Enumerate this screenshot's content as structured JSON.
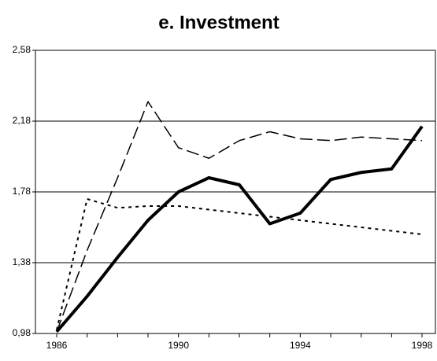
{
  "chart_data": {
    "type": "line",
    "title": "e. Investment",
    "categories": [
      "1986",
      null,
      null,
      null,
      "1990",
      null,
      null,
      null,
      "1994",
      null,
      null,
      null,
      "1998"
    ],
    "series": [
      {
        "color": "#000000",
        "dash": "solid",
        "width": 4,
        "values": [
          0.99,
          1.19,
          1.41,
          1.62,
          1.78,
          1.86,
          1.82,
          1.6,
          1.66,
          1.85,
          1.89,
          1.91,
          2.15
        ]
      },
      {
        "color": "#000000",
        "dash": "long",
        "width": 1.5,
        "values": [
          0.99,
          1.45,
          1.86,
          2.29,
          2.03,
          1.97,
          2.07,
          2.12,
          2.08,
          2.07,
          2.09,
          2.08,
          2.07
        ]
      },
      {
        "color": "#000000",
        "dash": "short",
        "width": 2,
        "values": [
          1.0,
          1.74,
          1.69,
          1.7,
          1.7,
          1.68,
          1.66,
          1.64,
          1.62,
          1.6,
          1.58,
          1.56,
          1.54
        ]
      }
    ],
    "ylim": [
      0.98,
      2.58
    ],
    "yticks": [
      {
        "value": 0.98,
        "label": "0,98"
      },
      {
        "value": 1.38,
        "label": "1,38"
      },
      {
        "value": 1.78,
        "label": "1,78"
      },
      {
        "value": 2.18,
        "label": "2,18"
      },
      {
        "value": 2.58,
        "label": "2,58"
      }
    ],
    "grid": true
  }
}
